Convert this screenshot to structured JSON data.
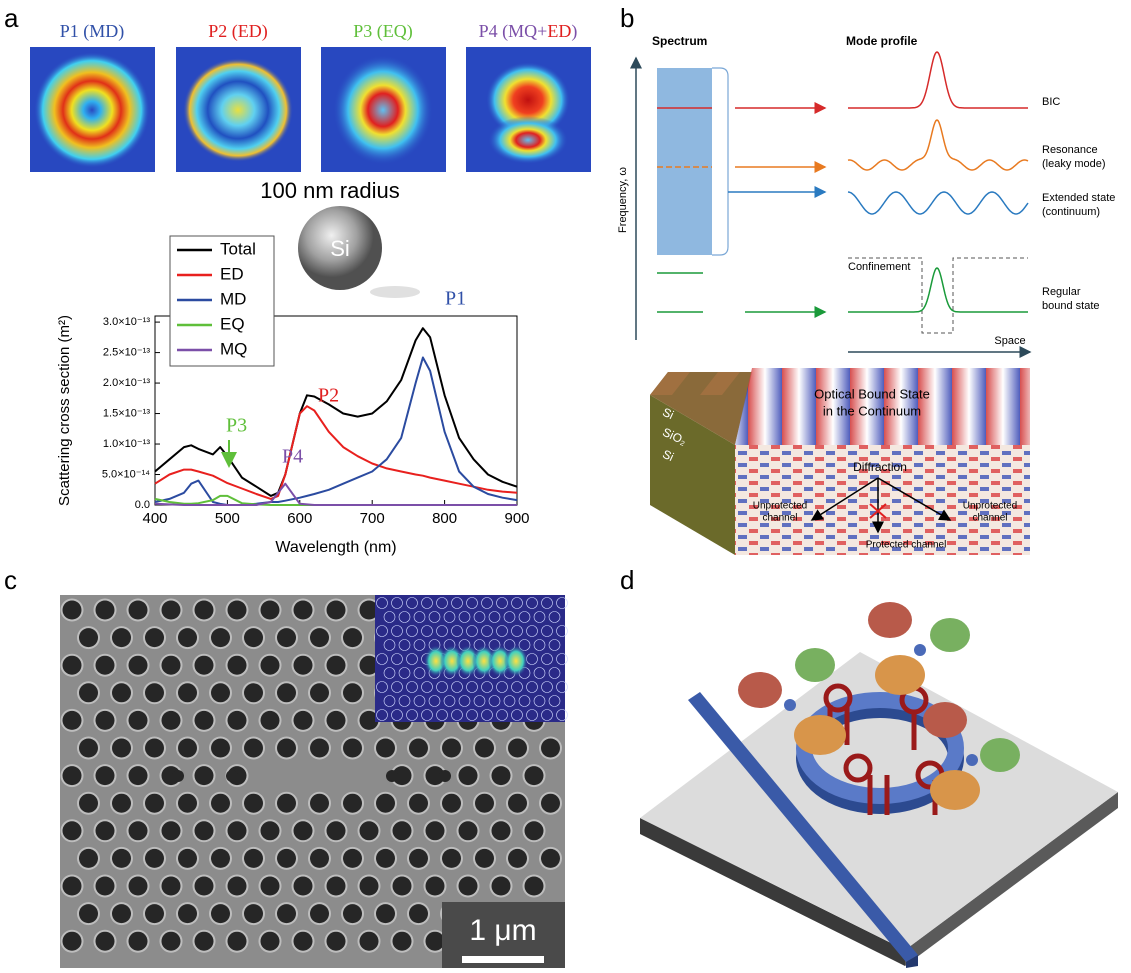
{
  "panel_labels": [
    "a",
    "b",
    "c",
    "d"
  ],
  "panel_a": {
    "mode_labels": [
      "P1 (MD)",
      "P2 (ED)",
      "P3 (EQ)"
    ],
    "p4_label_parts": [
      "P4 (MQ+",
      "ED",
      ")"
    ],
    "sphere_caption": "100 nm radius",
    "sphere_label": "Si"
  },
  "chart_data": {
    "type": "line",
    "xlabel": "Wavelength (nm)",
    "ylabel": "Scattering cross section (m²)",
    "x": [
      400,
      420,
      440,
      450,
      460,
      480,
      490,
      500,
      520,
      540,
      560,
      570,
      580,
      600,
      610,
      620,
      640,
      660,
      680,
      700,
      720,
      740,
      760,
      770,
      780,
      800,
      820,
      840,
      860,
      880,
      900
    ],
    "series": [
      {
        "name": "Total",
        "color": "#000000",
        "values": [
          5.5e-14,
          7.5e-14,
          9.5e-14,
          9.8e-14,
          9.2e-14,
          8.3e-14,
          9.5e-14,
          8e-14,
          4.5e-14,
          3e-14,
          1.5e-14,
          2e-14,
          5e-14,
          1.5e-13,
          1.8e-13,
          1.78e-13,
          1.65e-13,
          1.5e-13,
          1.45e-13,
          1.5e-13,
          1.7e-13,
          2.05e-13,
          2.7e-13,
          2.9e-13,
          2.75e-13,
          1.8e-13,
          1.1e-13,
          7.5e-14,
          5e-14,
          3.8e-14,
          3e-14
        ]
      },
      {
        "name": "ED",
        "color": "#e8201e",
        "values": [
          3.5e-14,
          5e-14,
          5.8e-14,
          5.8e-14,
          5.5e-14,
          4.8e-14,
          4.2e-14,
          3.6e-14,
          2.7e-14,
          1.8e-14,
          1e-14,
          1.5e-14,
          5e-14,
          1.5e-13,
          1.62e-13,
          1.55e-13,
          1.2e-13,
          9.5e-14,
          8e-14,
          6.8e-14,
          6e-14,
          5.5e-14,
          5e-14,
          4.8e-14,
          4.5e-14,
          4e-14,
          3.5e-14,
          3e-14,
          2.5e-14,
          2.2e-14,
          2e-14
        ]
      },
      {
        "name": "MD",
        "color": "#2b4ba0",
        "values": [
          5e-15,
          1e-14,
          2e-14,
          3.5e-14,
          4e-14,
          5e-15,
          2e-15,
          0,
          0,
          2e-15,
          5e-15,
          5e-15,
          7e-15,
          1.2e-14,
          1.5e-14,
          1.8e-14,
          2.5e-14,
          3.5e-14,
          4.5e-14,
          5.5e-14,
          7.5e-14,
          1.1e-13,
          2e-13,
          2.42e-13,
          2.2e-13,
          1.2e-13,
          5.5e-14,
          3e-14,
          1.8e-14,
          1.2e-14,
          8e-15
        ]
      },
      {
        "name": "EQ",
        "color": "#5fbf3a",
        "values": [
          1e-14,
          5e-15,
          2e-15,
          2e-15,
          3e-15,
          8e-15,
          1.5e-14,
          1.5e-14,
          3e-15,
          1e-15,
          0,
          0,
          0,
          0,
          0,
          0,
          0,
          0,
          0,
          0,
          0,
          0,
          0,
          0,
          0,
          0,
          0,
          0,
          0,
          0,
          0
        ]
      },
      {
        "name": "MQ",
        "color": "#7b4fa8",
        "values": [
          2e-15,
          1e-15,
          0,
          0,
          0,
          0,
          0,
          0,
          0,
          0,
          5e-15,
          2e-14,
          3.5e-14,
          2e-15,
          1e-15,
          0,
          0,
          0,
          0,
          0,
          0,
          0,
          0,
          0,
          0,
          0,
          0,
          0,
          0,
          0,
          0
        ]
      }
    ],
    "xlim": [
      400,
      900
    ],
    "ylim": [
      0,
      3.1e-13
    ],
    "xticks": [
      400,
      500,
      600,
      700,
      800,
      900
    ],
    "yticks": [
      {
        "value": 0,
        "label": "0.0"
      },
      {
        "value": 5e-14,
        "label": "5.0×10⁻¹⁴"
      },
      {
        "value": 1e-13,
        "label": "1.0×10⁻¹³"
      },
      {
        "value": 1.5e-13,
        "label": "1.5×10⁻¹³"
      },
      {
        "value": 2e-13,
        "label": "2.0×10⁻¹³"
      },
      {
        "value": 2.5e-13,
        "label": "2.5×10⁻¹³"
      },
      {
        "value": 3e-13,
        "label": "3.0×10⁻¹³"
      }
    ],
    "annotations": [
      {
        "text": "P1",
        "color": "#3050a8"
      },
      {
        "text": "P2",
        "color": "#e02020"
      },
      {
        "text": "P3",
        "color": "#5fbf3a"
      },
      {
        "text": "P4",
        "color": "#7b4fa8"
      }
    ]
  },
  "panel_b": {
    "spectrum": "Spectrum",
    "mode_profile": "Mode profile",
    "frequency_axis": "Frequency, ω",
    "space_axis": "Space",
    "states": [
      [
        "BIC"
      ],
      [
        "Resonance",
        "(leaky mode)"
      ],
      [
        "Extended state",
        "(continuum)"
      ],
      [
        "Regular",
        "bound state"
      ]
    ],
    "confinement": "Confinement",
    "device_title": [
      "Optical Bound State",
      "in the Continuum"
    ],
    "layers": [
      "Si",
      "SiO₂",
      "Si"
    ],
    "diffraction": "Diffraction",
    "unprotected_channel": [
      "Unprotected",
      "channel"
    ],
    "protected_channel": "Protected channel"
  },
  "panel_c": {
    "scale_bar": "1 μm"
  }
}
